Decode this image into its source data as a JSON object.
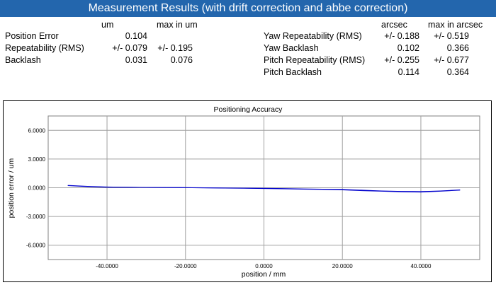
{
  "header": {
    "title": "Measurement Results (with drift correction and abbe correction)"
  },
  "left_table": {
    "col_headers": [
      "um",
      "max in um"
    ],
    "rows": [
      {
        "label": "Position Error",
        "value": "0.104",
        "max": ""
      },
      {
        "label": "Repeatability (RMS)",
        "value": "+/- 0.079",
        "max": "+/- 0.195"
      },
      {
        "label": "Backlash",
        "value": "0.031",
        "max": "0.076"
      }
    ]
  },
  "right_table": {
    "col_headers": [
      "arcsec",
      "max in arcsec"
    ],
    "rows": [
      {
        "label": "Yaw Repeatability (RMS)",
        "value": "+/- 0.188",
        "max": "+/- 0.519"
      },
      {
        "label": "Yaw Backlash",
        "value": "0.102",
        "max": "0.366"
      },
      {
        "label": "Pitch Repeatability (RMS)",
        "value": "+/- 0.255",
        "max": "+/- 0.677"
      },
      {
        "label": "Pitch Backlash",
        "value": "0.114",
        "max": "0.364"
      }
    ]
  },
  "chart_data": {
    "type": "line",
    "title": "Positioning Accuracy",
    "xlabel": "position / mm",
    "ylabel": "position error / um",
    "xlim": [
      -55,
      55
    ],
    "ylim": [
      -7.5,
      7.5
    ],
    "x_ticks": [
      -40,
      -20,
      0,
      20,
      40
    ],
    "x_tick_labels": [
      "-40.0000",
      "-20.0000",
      "0.0000",
      "20.0000",
      "40.0000"
    ],
    "y_ticks": [
      6,
      3,
      0,
      -3,
      -6
    ],
    "y_tick_labels": [
      "6.0000",
      "3.0000",
      "0.0000",
      "-3.0000",
      "-6.0000"
    ],
    "grid": true,
    "line_color": "#0000cc",
    "series": [
      {
        "x": [
          -50,
          -45,
          -40,
          -35,
          -30,
          -25,
          -20,
          -15,
          -10,
          -5,
          0,
          5,
          10,
          15,
          20,
          25,
          30,
          35,
          40,
          45,
          50
        ],
        "y": [
          0.25,
          0.15,
          0.08,
          0.06,
          0.04,
          0.03,
          0.02,
          0.0,
          -0.02,
          -0.04,
          -0.05,
          -0.08,
          -0.12,
          -0.15,
          -0.18,
          -0.25,
          -0.33,
          -0.38,
          -0.4,
          -0.33,
          -0.22
        ]
      },
      {
        "x": [
          -50,
          -45,
          -40,
          -35,
          -30,
          -25,
          -20,
          -15,
          -10,
          -5,
          0,
          5,
          10,
          15,
          20,
          25,
          30,
          35,
          40,
          45,
          50
        ],
        "y": [
          0.22,
          0.12,
          0.06,
          0.05,
          0.03,
          0.02,
          0.01,
          -0.02,
          -0.04,
          -0.06,
          -0.08,
          -0.11,
          -0.15,
          -0.18,
          -0.22,
          -0.3,
          -0.36,
          -0.42,
          -0.45,
          -0.36,
          -0.25
        ]
      }
    ]
  }
}
